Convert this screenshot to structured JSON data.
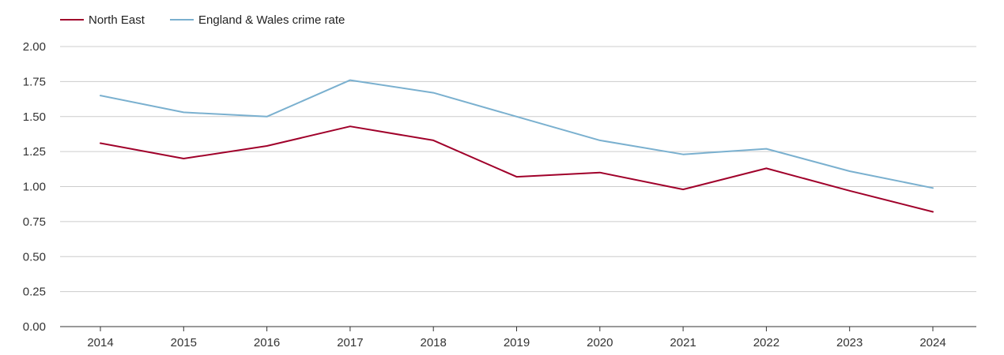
{
  "chart_data": {
    "type": "line",
    "title": "",
    "xlabel": "",
    "ylabel": "",
    "legend_position": "top-left",
    "grid": true,
    "categories": [
      "2014",
      "2015",
      "2016",
      "2017",
      "2018",
      "2019",
      "2020",
      "2021",
      "2022",
      "2023",
      "2024"
    ],
    "ylim": [
      0,
      2
    ],
    "yticks": [
      "0.00",
      "0.25",
      "0.50",
      "0.75",
      "1.00",
      "1.25",
      "1.50",
      "1.75",
      "2.00"
    ],
    "series": [
      {
        "name": "North East",
        "color": "#a0002a",
        "values": [
          1.31,
          1.2,
          1.29,
          1.43,
          1.33,
          1.07,
          1.1,
          0.98,
          1.13,
          0.97,
          0.82
        ]
      },
      {
        "name": "England & Wales crime rate",
        "color": "#7ab0cf",
        "values": [
          1.65,
          1.53,
          1.5,
          1.76,
          1.67,
          1.5,
          1.33,
          1.23,
          1.27,
          1.11,
          0.99
        ]
      }
    ]
  }
}
